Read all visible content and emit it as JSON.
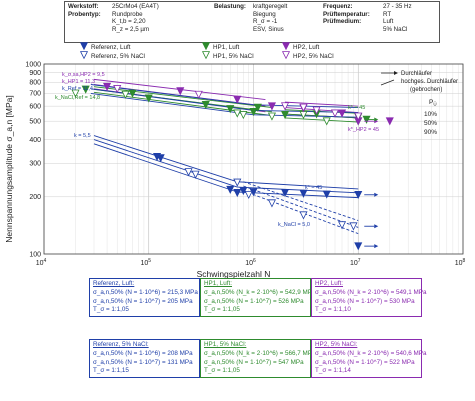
{
  "header": {
    "col1_labels": [
      "Werkstoff:",
      "Probentyp:",
      "",
      ""
    ],
    "col1_values": [
      "25CrMo4 (EA4T)",
      "Rundprobe",
      "K_t,b = 2,20",
      "R_z = 2,5 µm"
    ],
    "col2_labels": [
      "Belastung:",
      "",
      "",
      ""
    ],
    "col2_values": [
      "kraftgeregelt",
      "Biegung",
      "R_σ = -1",
      "ESV, Sinus"
    ],
    "col3_labels": [
      "Frequenz:",
      "Prüftemperatur:",
      "Prüfmedium:",
      ""
    ],
    "col3_values": [
      "27 - 35 Hz",
      "RT",
      "Luft",
      "5% NaCl"
    ]
  },
  "legend": {
    "items": [
      "Referenz, Luft",
      "Referenz, 5% NaCl",
      "HP1, Luft",
      "HP1, 5% NaCl",
      "HP2, Luft",
      "HP2, 5% NaCl"
    ],
    "runout": [
      "Durchläufer",
      "hochges. Durchläufer",
      "(gebrochen)"
    ],
    "pu_title": "P_Ü",
    "pu_values": [
      "10%",
      "50%",
      "90%"
    ]
  },
  "colors": {
    "referenz": "#1f3fa8",
    "hp1": "#2e8b2e",
    "hp2": "#8a2bb0"
  },
  "slopes": {
    "hp2_air": "k_σ,sa,HP2 = 9,5",
    "hp1_air": "k_HP1 = 11,3",
    "ref_air": "k_Ref = 11,4",
    "nacl_air": "k_NaCl,Ref = 14,8",
    "k_star_upper": "k* = 45",
    "k_star_upper2": "k*_HP2 = 45",
    "ref_nacl": "k = 5,5",
    "k_star_lower": "k* = 45",
    "k_nacl_lower": "k_NaCl = 5,0"
  },
  "chart_data": {
    "type": "scatter",
    "title": "",
    "xlabel": "Schwingspielzahl N",
    "ylabel": "Nennspannungsamplitude σ_a,n [MPa]",
    "xscale": "log",
    "yscale": "log",
    "xlim": [
      10000,
      100000000
    ],
    "ylim": [
      100,
      1000
    ],
    "x_ticks": [
      "10^4",
      "10^5",
      "10^6",
      "10^7",
      "10^8"
    ],
    "y_ticks": [
      "100",
      "200",
      "300",
      "400",
      "500",
      "600",
      "700",
      "800",
      "900",
      "1000"
    ],
    "grid": true,
    "series": [
      {
        "name": "Referenz, Luft",
        "marker": "filled-down-triangle",
        "color": "#1f3fa8",
        "points": [
          [
            120000,
            325
          ],
          [
            130000,
            320
          ],
          [
            600000,
            218
          ],
          [
            700000,
            210
          ],
          [
            800000,
            215
          ],
          [
            1000000,
            212
          ],
          [
            2000000,
            210
          ],
          [
            3000000,
            208
          ],
          [
            5000000,
            206
          ],
          [
            10000000,
            205
          ],
          [
            10000000,
            110
          ]
        ]
      },
      {
        "name": "Referenz, 5% NaCl",
        "marker": "open-down-triangle",
        "color": "#1f3fa8",
        "points": [
          [
            240000,
            270
          ],
          [
            280000,
            262
          ],
          [
            700000,
            238
          ],
          [
            900000,
            205
          ],
          [
            1500000,
            185
          ],
          [
            3000000,
            160
          ],
          [
            7000000,
            142
          ],
          [
            9000000,
            140
          ]
        ]
      },
      {
        "name": "HP1, Luft",
        "marker": "filled-down-triangle",
        "color": "#2e8b2e",
        "points": [
          [
            25000,
            735
          ],
          [
            70000,
            700
          ],
          [
            100000,
            660
          ],
          [
            350000,
            610
          ],
          [
            600000,
            580
          ],
          [
            1000000,
            560
          ],
          [
            1100000,
            590
          ],
          [
            2000000,
            540
          ],
          [
            4000000,
            545
          ],
          [
            10000000,
            525
          ],
          [
            12000000,
            510
          ]
        ]
      },
      {
        "name": "HP1, 5% NaCl",
        "marker": "open-down-triangle",
        "color": "#2e8b2e",
        "points": [
          [
            20000,
            700
          ],
          [
            60000,
            690
          ],
          [
            700000,
            550
          ],
          [
            800000,
            540
          ],
          [
            1500000,
            530
          ],
          [
            3000000,
            540
          ],
          [
            5000000,
            500
          ],
          [
            10000000,
            500
          ]
        ]
      },
      {
        "name": "HP2, Luft",
        "marker": "filled-down-triangle",
        "color": "#8a2bb0",
        "points": [
          [
            40000,
            760
          ],
          [
            200000,
            720
          ],
          [
            700000,
            650
          ],
          [
            1500000,
            600
          ],
          [
            3000000,
            585
          ],
          [
            7000000,
            550
          ],
          [
            10000000,
            500
          ],
          [
            20000000,
            500
          ]
        ]
      },
      {
        "name": "HP2, 5% NaCl",
        "marker": "open-down-triangle",
        "color": "#8a2bb0",
        "points": [
          [
            50000,
            740
          ],
          [
            300000,
            690
          ],
          [
            2000000,
            600
          ],
          [
            3000000,
            590
          ],
          [
            4000000,
            570
          ],
          [
            6000000,
            550
          ],
          [
            10000000,
            530
          ]
        ]
      }
    ],
    "runouts_x": 10000000,
    "summary_boxes": [
      {
        "title": "Referenz, Luft:",
        "color": "#1f3fa8",
        "lines": [
          "σ_a,n,50% (N = 1·10^6) = 215,3 MPa",
          "σ_a,n,50% (N = 1·10^7) = 205 MPa",
          "T_σ = 1:1,05"
        ]
      },
      {
        "title": "HP1, Luft:",
        "color": "#2e8b2e",
        "lines": [
          "σ_a,n,50% (N_k = 2·10^6) = 542,9 MPa",
          "σ_a,n,50% (N = 1·10^7) = 526 MPa",
          "T_σ = 1:1,05"
        ]
      },
      {
        "title": "HP2, Luft:",
        "color": "#8a2bb0",
        "lines": [
          "σ_a,n,50% (N_k = 2·10^6) = 549,1 MPa",
          "σ_a,n,50% (N = 1·10^7) = 530 MPa",
          "T_σ = 1:1,10"
        ]
      },
      {
        "title": "Referenz, 5% NaCl:",
        "color": "#1f3fa8",
        "lines": [
          "σ_a,n,50% (N = 1·10^6) = 208 MPa",
          "σ_a,n,50% (N = 1·10^7) = 131 MPa",
          "T_σ = 1:1,15"
        ]
      },
      {
        "title": "HP1, 5% NaCl:",
        "color": "#2e8b2e",
        "lines": [
          "σ_a,n,50% (N_k = 2·10^6) = 566,7 MPa",
          "σ_a,n,50% (N = 1·10^7) = 547 MPa",
          "T_σ = 1:1,05"
        ]
      },
      {
        "title": "HP2, 5% NaCl:",
        "color": "#8a2bb0",
        "lines": [
          "σ_a,n,50% (N_k = 2·10^6) = 540,6 MPa",
          "σ_a,n,50% (N = 1·10^7) = 522 MPa",
          "T_σ = 1:1,14"
        ]
      }
    ]
  }
}
